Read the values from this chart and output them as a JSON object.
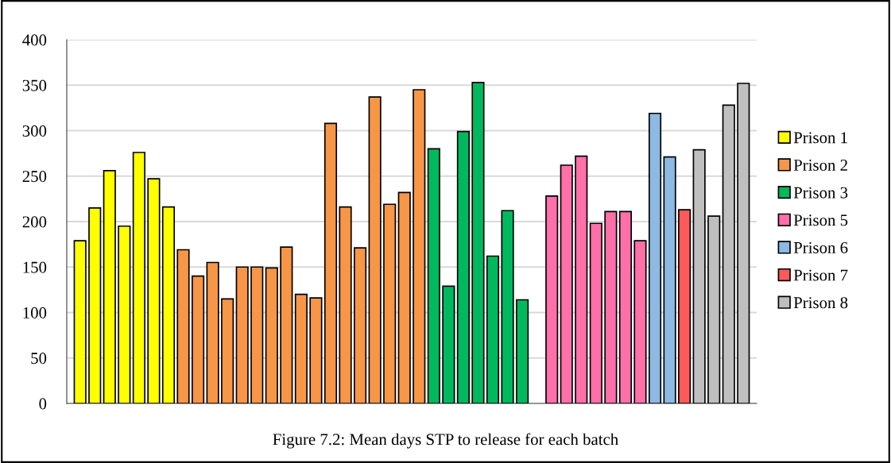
{
  "chart_data": {
    "type": "bar",
    "title": "Figure 7.2: Mean days STP to release for each batch",
    "categories": [
      null,
      null,
      null,
      null,
      null,
      null,
      null,
      null,
      null,
      null,
      null,
      null,
      null,
      null,
      null,
      null,
      null,
      null,
      null,
      null,
      null,
      null,
      null,
      null,
      null,
      null,
      null,
      null,
      null,
      null,
      null,
      null,
      null,
      null,
      null,
      null,
      null,
      null,
      null,
      null,
      null,
      null,
      null,
      null,
      null,
      null
    ],
    "series": [
      {
        "name": "Prison 1",
        "color": "#ffff00",
        "values": [
          179,
          215,
          256,
          195,
          276,
          247,
          216,
          null,
          null,
          null,
          null,
          null,
          null,
          null,
          null,
          null,
          null,
          null,
          null,
          null,
          null,
          null,
          null,
          null,
          null,
          null,
          null,
          null,
          null,
          null,
          null,
          null,
          null,
          null,
          null,
          null,
          null,
          null,
          null,
          null,
          null,
          null,
          null,
          null,
          null,
          null
        ]
      },
      {
        "name": "Prison 2",
        "color": "#f79646",
        "values": [
          null,
          null,
          null,
          null,
          null,
          null,
          null,
          169,
          140,
          155,
          115,
          150,
          150,
          149,
          172,
          120,
          116,
          308,
          216,
          171,
          337,
          219,
          232,
          345,
          null,
          null,
          null,
          null,
          null,
          null,
          null,
          null,
          null,
          null,
          null,
          null,
          null,
          null,
          null,
          null,
          null,
          null,
          null,
          null,
          null,
          null
        ]
      },
      {
        "name": "Prison 3",
        "color": "#00b95f",
        "values": [
          null,
          null,
          null,
          null,
          null,
          null,
          null,
          null,
          null,
          null,
          null,
          null,
          null,
          null,
          null,
          null,
          null,
          null,
          null,
          null,
          null,
          null,
          null,
          null,
          280,
          129,
          299,
          353,
          162,
          212,
          114,
          null,
          null,
          null,
          null,
          null,
          null,
          null,
          null,
          null,
          null,
          null,
          null,
          null,
          null,
          null
        ]
      },
      {
        "name": "Prison 5",
        "color": "#ff6fa8",
        "values": [
          null,
          null,
          null,
          null,
          null,
          null,
          null,
          null,
          null,
          null,
          null,
          null,
          null,
          null,
          null,
          null,
          null,
          null,
          null,
          null,
          null,
          null,
          null,
          null,
          null,
          null,
          null,
          null,
          null,
          null,
          null,
          null,
          228,
          262,
          272,
          198,
          211,
          211,
          179,
          null,
          null,
          null,
          null,
          null,
          null,
          null
        ]
      },
      {
        "name": "Prison 6",
        "color": "#8db9e3",
        "values": [
          null,
          null,
          null,
          null,
          null,
          null,
          null,
          null,
          null,
          null,
          null,
          null,
          null,
          null,
          null,
          null,
          null,
          null,
          null,
          null,
          null,
          null,
          null,
          null,
          null,
          null,
          null,
          null,
          null,
          null,
          null,
          null,
          null,
          null,
          null,
          null,
          null,
          null,
          null,
          319,
          271,
          null,
          null,
          null,
          null,
          null
        ]
      },
      {
        "name": "Prison 7",
        "color": "#ff5a5a",
        "values": [
          null,
          null,
          null,
          null,
          null,
          null,
          null,
          null,
          null,
          null,
          null,
          null,
          null,
          null,
          null,
          null,
          null,
          null,
          null,
          null,
          null,
          null,
          null,
          null,
          null,
          null,
          null,
          null,
          null,
          null,
          null,
          null,
          null,
          null,
          null,
          null,
          null,
          null,
          null,
          null,
          null,
          213,
          null,
          null,
          null,
          null
        ]
      },
      {
        "name": "Prison 8",
        "color": "#bfbfbf",
        "values": [
          null,
          null,
          null,
          null,
          null,
          null,
          null,
          null,
          null,
          null,
          null,
          null,
          null,
          null,
          null,
          null,
          null,
          null,
          null,
          null,
          null,
          null,
          null,
          null,
          null,
          null,
          null,
          null,
          null,
          null,
          null,
          null,
          null,
          null,
          null,
          null,
          null,
          null,
          null,
          null,
          null,
          null,
          279,
          206,
          328,
          352
        ]
      }
    ],
    "ylim": [
      0,
      400
    ],
    "yticks": [
      0,
      50,
      100,
      150,
      200,
      250,
      300,
      350,
      400
    ],
    "grid": "y",
    "legend": "right"
  }
}
